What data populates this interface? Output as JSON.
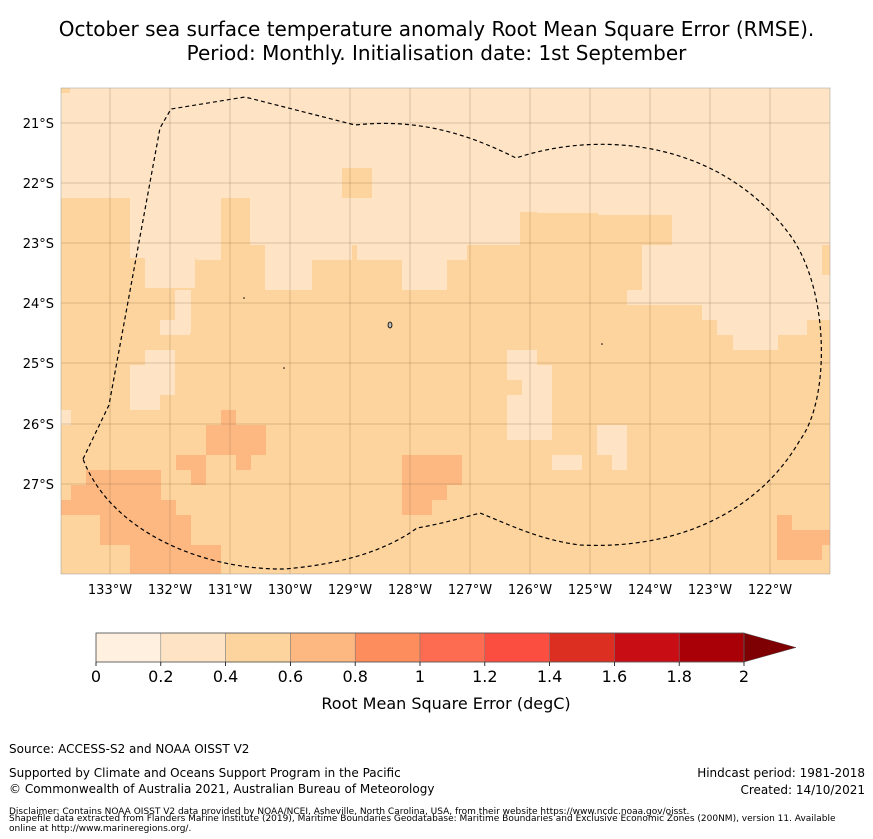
{
  "title_line1": "October sea surface temperature anomaly Root Mean Square Error (RMSE).",
  "title_line2": "Period: Monthly. Initialisation date: 1st September",
  "map": {
    "lon_labels": [
      "133°W",
      "132°W",
      "131°W",
      "130°W",
      "129°W",
      "128°W",
      "127°W",
      "126°W",
      "125°W",
      "124°W",
      "123°W",
      "122°W"
    ],
    "lat_labels": [
      "21°S",
      "22°S",
      "23°S",
      "24°S",
      "25°S",
      "26°S",
      "27°S"
    ],
    "colors": {
      "level_0_0.2": "#fff0df",
      "level_0.2_0.4": "#fee4c4",
      "level_0.4_0.6": "#fdd49d",
      "level_0.6_0.8": "#fdb881",
      "boundary": "#000000"
    }
  },
  "colorbar": {
    "label": "Root Mean Square Error (degC)",
    "ticks": [
      "0",
      "0.2",
      "0.4",
      "0.6",
      "0.8",
      "1",
      "1.2",
      "1.4",
      "1.6",
      "1.8",
      "2"
    ],
    "colors": [
      "#fff0df",
      "#fee4c4",
      "#fdd49d",
      "#fdb881",
      "#fd8d5c",
      "#fd6b51",
      "#fb4d40",
      "#dc2f22",
      "#c90d14",
      "#a90008",
      "#7e0003"
    ]
  },
  "footer": {
    "source": "Source: ACCESS-S2 and NOAA OISST V2",
    "supported": "Supported by Climate and Oceans Support Program in the Pacific",
    "copyright": "© Commonwealth of Australia 2021, Australian Bureau of Meteorology",
    "hindcast": "Hindcast period: 1981-2018",
    "created": "Created: 14/10/2021",
    "disclaimer1": "Disclaimer: Contains NOAA OISST V2 data provided by NOAA/NCEI, Asheville, North Carolina, USA, from their website https://www.ncdc.noaa.gov/oisst.",
    "disclaimer2": "Shapefile data extracted from Flanders Marine Institute (2019), Maritime Boundaries Geodatabase: Maritime Boundaries and Exclusive Economic Zones (200NM), version 11. Available",
    "disclaimer3": "online at http://www.marineregions.org/."
  }
}
